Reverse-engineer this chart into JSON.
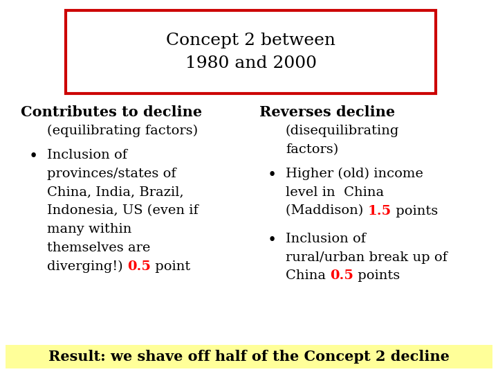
{
  "bg_color": "#ffffff",
  "title_text": "Concept 2 between\n1980 and 2000",
  "title_box_color": "#cc0000",
  "title_fontsize": 18,
  "left_header": "Contributes to decline",
  "left_sub": "(equilibrating factors)",
  "left_bullet_lines": [
    "Inclusion of",
    "provinces/states of",
    "China, India, Brazil,",
    "Indonesia, US (even if",
    "many within",
    "themselves are",
    "diverging!) "
  ],
  "left_red": "0.5",
  "left_suffix": " point",
  "right_header": "Reverses decline",
  "right_sub1": "(disequilibrating",
  "right_sub2": "factors)",
  "right_b1_lines": [
    "Higher (old) income",
    "level in  China",
    "(Maddison) "
  ],
  "right_b1_red": "1.5",
  "right_b1_suf": " points",
  "right_b2_lines": [
    "Inclusion of",
    "rural/urban break up of",
    "China "
  ],
  "right_b2_red": "0.5",
  "right_b2_suf": " points",
  "result_text": "Result: we shave off half of the Concept 2 decline",
  "result_bg": "#ffff99",
  "body_fontsize": 14,
  "header_fontsize": 15,
  "result_fontsize": 15
}
